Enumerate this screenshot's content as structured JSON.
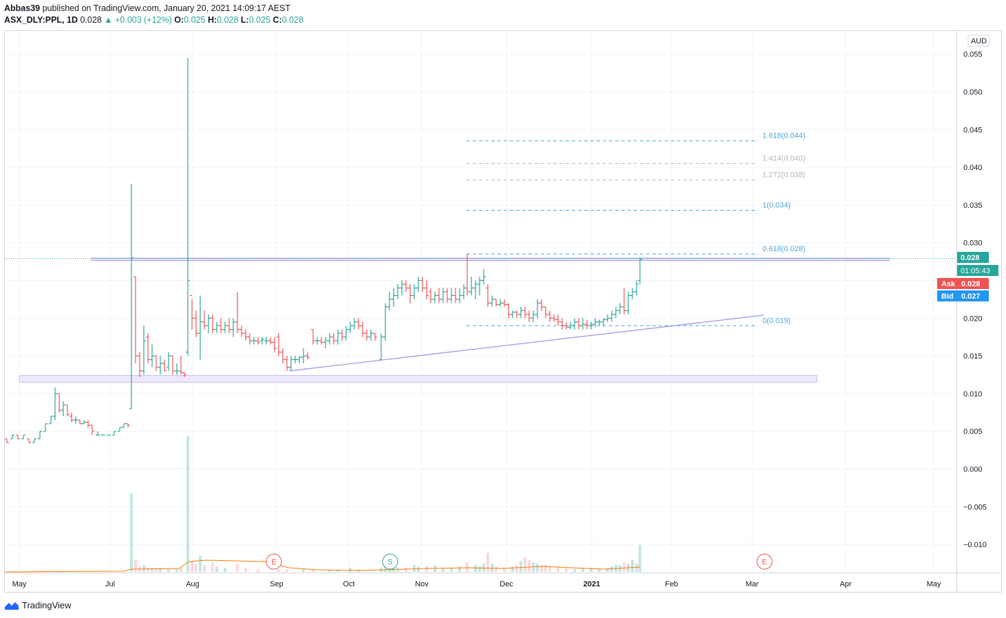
{
  "header": {
    "author": "Abbas39",
    "published_text": "published on TradingView.com, January 20, 2021 14:09:17 AEST",
    "symbol": "ASX_DLY:PPL, 1D",
    "last": "0.028",
    "change": "+0.003 (+12%)",
    "o_label": "O:",
    "o_value": "0.025",
    "h_label": "H:",
    "h_value": "0.028",
    "l_label": "L:",
    "l_value": "0.025",
    "c_label": "C:",
    "c_value": "0.028"
  },
  "footer": {
    "brand": "TradingView"
  },
  "colors": {
    "up": "#26a69a",
    "down": "#ef5350",
    "fib": "#4aa8d8",
    "fib_grey": "#b2b5be",
    "trend": "#9c8fe0",
    "zone": "#ede8fb",
    "ask": "#ef5350",
    "bid": "#2196f3",
    "volume_ma": "#f57c00"
  },
  "chart_data": {
    "type": "ohlc",
    "currency": "AUD",
    "y_ticks": [
      "0.055",
      "0.050",
      "0.045",
      "0.040",
      "0.035",
      "0.030",
      "0.025",
      "0.020",
      "0.015",
      "0.010",
      "0.005",
      "0.000",
      "−0.005",
      "−0.010"
    ],
    "x_ticks": [
      "May",
      "Jul",
      "Aug",
      "Sep",
      "Oct",
      "Nov",
      "Dec",
      "2021",
      "Feb",
      "Mar",
      "Apr",
      "May"
    ],
    "price_labels": {
      "last": "0.028",
      "countdown": "01:05:43",
      "ask_label": "Ask",
      "ask": "0.028",
      "bid_label": "Bid",
      "bid": "0.027"
    },
    "fib_levels": [
      {
        "label": "1.618(0.044)",
        "value": 0.0435,
        "muted": false
      },
      {
        "label": "1.414(0.040)",
        "value": 0.0405,
        "muted": true
      },
      {
        "label": "1.272(0.038)",
        "value": 0.0383,
        "muted": true
      },
      {
        "label": "1(0.034)",
        "value": 0.0343,
        "muted": false
      },
      {
        "label": "0.618(0.028)",
        "value": 0.0285,
        "muted": false
      },
      {
        "label": "0(0.019)",
        "value": 0.019,
        "muted": false
      }
    ],
    "events": [
      {
        "letter": "E",
        "date": "Sep",
        "color": "#ef5350"
      },
      {
        "letter": "S",
        "date": "Oct",
        "color": "#26a69a"
      },
      {
        "letter": "E",
        "date": "Mar",
        "color": "#ef5350"
      }
    ],
    "trendline": {
      "from": [
        420,
        0.013
      ],
      "to": [
        1110,
        0.0204
      ]
    },
    "support_zone": {
      "from_x": 28,
      "to_x": 1187,
      "low": 0.0115,
      "high": 0.0124
    },
    "resistance_line": {
      "from_x": 132,
      "to_x": 1293,
      "value": 0.0278
    },
    "bars": [
      [
        10,
        0.004,
        0.004,
        0.0035,
        0.0035
      ],
      [
        18,
        0.004,
        0.0045,
        0.004,
        0.0045
      ],
      [
        26,
        0.0045,
        0.0045,
        0.004,
        0.004
      ],
      [
        34,
        0.004,
        0.0045,
        0.004,
        0.0045
      ],
      [
        42,
        0.004,
        0.004,
        0.0035,
        0.0035
      ],
      [
        50,
        0.0035,
        0.004,
        0.0035,
        0.004
      ],
      [
        58,
        0.004,
        0.005,
        0.004,
        0.005
      ],
      [
        66,
        0.005,
        0.006,
        0.005,
        0.006
      ],
      [
        74,
        0.006,
        0.007,
        0.006,
        0.007
      ],
      [
        80,
        0.007,
        0.0108,
        0.0065,
        0.01
      ],
      [
        86,
        0.01,
        0.01,
        0.0075,
        0.0078
      ],
      [
        92,
        0.0078,
        0.009,
        0.007,
        0.0085
      ],
      [
        98,
        0.0085,
        0.0085,
        0.007,
        0.0072
      ],
      [
        104,
        0.007,
        0.0075,
        0.0062,
        0.0065
      ],
      [
        110,
        0.0065,
        0.007,
        0.006,
        0.0065
      ],
      [
        116,
        0.0065,
        0.0065,
        0.006,
        0.006
      ],
      [
        122,
        0.006,
        0.0065,
        0.006,
        0.0062
      ],
      [
        128,
        0.0062,
        0.0065,
        0.0055,
        0.0058
      ],
      [
        134,
        0.0058,
        0.0058,
        0.0045,
        0.005
      ],
      [
        142,
        0.0045,
        0.005,
        0.0045,
        0.0045
      ],
      [
        150,
        0.0045,
        0.0045,
        0.0045,
        0.0045
      ],
      [
        158,
        0.0045,
        0.0045,
        0.0045,
        0.0045
      ],
      [
        166,
        0.0045,
        0.005,
        0.0045,
        0.005
      ],
      [
        174,
        0.005,
        0.0055,
        0.005,
        0.0055
      ],
      [
        180,
        0.0055,
        0.006,
        0.0055,
        0.006
      ],
      [
        186,
        0.006,
        0.006,
        0.0055,
        0.0058
      ],
      [
        191,
        0.008,
        0.0378,
        0.008,
        0.028
      ],
      [
        197,
        0.0255,
        0.0255,
        0.014,
        0.015
      ],
      [
        203,
        0.015,
        0.0155,
        0.0122,
        0.013
      ],
      [
        209,
        0.013,
        0.019,
        0.0125,
        0.017
      ],
      [
        215,
        0.0175,
        0.018,
        0.014,
        0.0145
      ],
      [
        221,
        0.0145,
        0.0165,
        0.0135,
        0.015
      ],
      [
        227,
        0.015,
        0.015,
        0.013,
        0.0135
      ],
      [
        233,
        0.0135,
        0.015,
        0.0125,
        0.014
      ],
      [
        239,
        0.014,
        0.0145,
        0.013,
        0.013
      ],
      [
        245,
        0.0135,
        0.0155,
        0.013,
        0.015
      ],
      [
        251,
        0.015,
        0.015,
        0.0125,
        0.013
      ],
      [
        257,
        0.013,
        0.014,
        0.0125,
        0.013
      ],
      [
        263,
        0.013,
        0.015,
        0.0125,
        0.0128
      ],
      [
        268,
        0.0128,
        0.0128,
        0.0122,
        0.0125
      ],
      [
        273,
        0.0155,
        0.0545,
        0.015,
        0.025
      ],
      [
        279,
        0.023,
        0.0225,
        0.0185,
        0.02
      ],
      [
        285,
        0.02,
        0.021,
        0.0175,
        0.018
      ],
      [
        291,
        0.018,
        0.023,
        0.0145,
        0.0195
      ],
      [
        297,
        0.0195,
        0.021,
        0.0185,
        0.019
      ],
      [
        303,
        0.019,
        0.0205,
        0.018,
        0.02
      ],
      [
        309,
        0.02,
        0.0205,
        0.018,
        0.0185
      ],
      [
        315,
        0.0185,
        0.0195,
        0.018,
        0.019
      ],
      [
        321,
        0.019,
        0.02,
        0.018,
        0.0185
      ],
      [
        327,
        0.0185,
        0.0195,
        0.018,
        0.019
      ],
      [
        333,
        0.019,
        0.02,
        0.018,
        0.0185
      ],
      [
        339,
        0.0185,
        0.02,
        0.0175,
        0.0195
      ],
      [
        345,
        0.0195,
        0.0235,
        0.018,
        0.0185
      ],
      [
        351,
        0.0185,
        0.019,
        0.0175,
        0.018
      ],
      [
        357,
        0.018,
        0.0185,
        0.017,
        0.0175
      ],
      [
        363,
        0.0175,
        0.018,
        0.0165,
        0.017
      ],
      [
        369,
        0.017,
        0.0175,
        0.0165,
        0.017
      ],
      [
        375,
        0.017,
        0.0175,
        0.0165,
        0.0168
      ],
      [
        381,
        0.017,
        0.0175,
        0.0165,
        0.0172
      ],
      [
        387,
        0.017,
        0.0175,
        0.0165,
        0.017
      ],
      [
        393,
        0.017,
        0.0175,
        0.0165,
        0.0168
      ],
      [
        399,
        0.0168,
        0.0175,
        0.0155,
        0.016
      ],
      [
        405,
        0.0175,
        0.018,
        0.015,
        0.0155
      ],
      [
        411,
        0.0155,
        0.016,
        0.014,
        0.0145
      ],
      [
        417,
        0.0145,
        0.015,
        0.013,
        0.0135
      ],
      [
        423,
        0.0135,
        0.015,
        0.013,
        0.0145
      ],
      [
        429,
        0.0145,
        0.015,
        0.014,
        0.0145
      ],
      [
        435,
        0.0145,
        0.015,
        0.014,
        0.0148
      ],
      [
        441,
        0.0148,
        0.016,
        0.014,
        0.015
      ],
      [
        447,
        0.015,
        0.0155,
        0.0145,
        0.0148
      ],
      [
        455,
        0.0185,
        0.0185,
        0.0165,
        0.017
      ],
      [
        461,
        0.017,
        0.0175,
        0.0165,
        0.017
      ],
      [
        467,
        0.017,
        0.0175,
        0.0165,
        0.0168
      ],
      [
        473,
        0.0168,
        0.0175,
        0.016,
        0.017
      ],
      [
        479,
        0.017,
        0.018,
        0.0165,
        0.0175
      ],
      [
        485,
        0.0175,
        0.018,
        0.0165,
        0.017
      ],
      [
        491,
        0.017,
        0.0185,
        0.0165,
        0.018
      ],
      [
        497,
        0.018,
        0.0185,
        0.017,
        0.0175
      ],
      [
        503,
        0.0175,
        0.019,
        0.017,
        0.0185
      ],
      [
        509,
        0.0185,
        0.0195,
        0.018,
        0.019
      ],
      [
        515,
        0.019,
        0.02,
        0.0185,
        0.0195
      ],
      [
        521,
        0.0195,
        0.02,
        0.0185,
        0.019
      ],
      [
        527,
        0.019,
        0.0195,
        0.0175,
        0.018
      ],
      [
        533,
        0.018,
        0.0185,
        0.017,
        0.0175
      ],
      [
        539,
        0.0175,
        0.0185,
        0.017,
        0.018
      ],
      [
        545,
        0.018,
        0.018,
        0.017,
        0.0175
      ],
      [
        554,
        0.0145,
        0.018,
        0.0145,
        0.0175
      ],
      [
        560,
        0.0175,
        0.022,
        0.017,
        0.0215
      ],
      [
        566,
        0.0215,
        0.0235,
        0.021,
        0.0225
      ],
      [
        572,
        0.0225,
        0.024,
        0.0215,
        0.023
      ],
      [
        578,
        0.023,
        0.0245,
        0.0225,
        0.024
      ],
      [
        584,
        0.024,
        0.025,
        0.023,
        0.0245
      ],
      [
        590,
        0.0245,
        0.025,
        0.0235,
        0.024
      ],
      [
        596,
        0.024,
        0.0245,
        0.022,
        0.023
      ],
      [
        602,
        0.023,
        0.0245,
        0.0225,
        0.024
      ],
      [
        608,
        0.024,
        0.0255,
        0.0235,
        0.025
      ],
      [
        614,
        0.025,
        0.0255,
        0.0235,
        0.024
      ],
      [
        620,
        0.024,
        0.025,
        0.0225,
        0.023
      ],
      [
        626,
        0.0235,
        0.024,
        0.022,
        0.0225
      ],
      [
        632,
        0.0225,
        0.0235,
        0.022,
        0.023
      ],
      [
        638,
        0.023,
        0.024,
        0.022,
        0.0225
      ],
      [
        644,
        0.0225,
        0.024,
        0.022,
        0.0235
      ],
      [
        650,
        0.0235,
        0.024,
        0.022,
        0.0225
      ],
      [
        656,
        0.0225,
        0.024,
        0.022,
        0.023
      ],
      [
        662,
        0.023,
        0.024,
        0.022,
        0.0225
      ],
      [
        668,
        0.0225,
        0.024,
        0.022,
        0.023
      ],
      [
        674,
        0.023,
        0.0245,
        0.0225,
        0.024
      ],
      [
        679,
        0.024,
        0.0285,
        0.023,
        0.0235
      ],
      [
        685,
        0.0235,
        0.0255,
        0.023,
        0.024
      ],
      [
        691,
        0.024,
        0.025,
        0.0225,
        0.0245
      ],
      [
        697,
        0.0245,
        0.0255,
        0.023,
        0.025
      ],
      [
        703,
        0.025,
        0.0265,
        0.0245,
        0.0255
      ],
      [
        709,
        0.024,
        0.0245,
        0.0215,
        0.022
      ],
      [
        715,
        0.022,
        0.023,
        0.0215,
        0.0225
      ],
      [
        721,
        0.0225,
        0.0225,
        0.0215,
        0.0218
      ],
      [
        727,
        0.0218,
        0.0225,
        0.0215,
        0.022
      ],
      [
        733,
        0.022,
        0.0225,
        0.0215,
        0.0218
      ],
      [
        739,
        0.0218,
        0.022,
        0.02,
        0.0205
      ],
      [
        745,
        0.0205,
        0.021,
        0.02,
        0.0208
      ],
      [
        751,
        0.0208,
        0.021,
        0.02,
        0.0205
      ],
      [
        757,
        0.0205,
        0.0215,
        0.02,
        0.021
      ],
      [
        763,
        0.021,
        0.0215,
        0.02,
        0.0205
      ],
      [
        769,
        0.0205,
        0.021,
        0.0195,
        0.02
      ],
      [
        775,
        0.02,
        0.021,
        0.0195,
        0.0205
      ],
      [
        781,
        0.0205,
        0.0225,
        0.02,
        0.022
      ],
      [
        787,
        0.022,
        0.0225,
        0.021,
        0.0215
      ],
      [
        793,
        0.0215,
        0.0215,
        0.02,
        0.0205
      ],
      [
        799,
        0.0205,
        0.021,
        0.0195,
        0.02
      ],
      [
        805,
        0.02,
        0.0205,
        0.0195,
        0.0198
      ],
      [
        811,
        0.0198,
        0.0205,
        0.019,
        0.0195
      ],
      [
        817,
        0.0195,
        0.02,
        0.0185,
        0.019
      ],
      [
        823,
        0.019,
        0.0195,
        0.0185,
        0.0188
      ],
      [
        829,
        0.0188,
        0.0195,
        0.0185,
        0.019
      ],
      [
        835,
        0.019,
        0.02,
        0.0185,
        0.0195
      ],
      [
        841,
        0.0195,
        0.02,
        0.0185,
        0.019
      ],
      [
        847,
        0.019,
        0.02,
        0.0185,
        0.0192
      ],
      [
        853,
        0.0192,
        0.0198,
        0.0185,
        0.019
      ],
      [
        859,
        0.019,
        0.0195,
        0.0185,
        0.0192
      ],
      [
        865,
        0.0192,
        0.02,
        0.0188,
        0.0195
      ],
      [
        871,
        0.0195,
        0.0198,
        0.019,
        0.0195
      ],
      [
        877,
        0.0195,
        0.02,
        0.019,
        0.0198
      ],
      [
        883,
        0.0198,
        0.0205,
        0.0195,
        0.02
      ],
      [
        889,
        0.02,
        0.021,
        0.0195,
        0.0205
      ],
      [
        895,
        0.0205,
        0.0215,
        0.02,
        0.021
      ],
      [
        901,
        0.021,
        0.022,
        0.0205,
        0.0215
      ],
      [
        907,
        0.0215,
        0.024,
        0.0205,
        0.021
      ],
      [
        913,
        0.021,
        0.0235,
        0.0205,
        0.023
      ],
      [
        919,
        0.023,
        0.024,
        0.0225,
        0.0235
      ],
      [
        925,
        0.0235,
        0.025,
        0.023,
        0.0245
      ],
      [
        930,
        0.025,
        0.028,
        0.0245,
        0.0278
      ]
    ],
    "volume": [
      [
        191,
        0.58
      ],
      [
        197,
        0.09
      ],
      [
        203,
        0.04
      ],
      [
        209,
        0.05
      ],
      [
        215,
        0.03
      ],
      [
        221,
        0.03
      ],
      [
        227,
        0.03
      ],
      [
        233,
        0.03
      ],
      [
        245,
        0.02
      ],
      [
        257,
        0.02
      ],
      [
        263,
        0.03
      ],
      [
        273,
        1.0
      ],
      [
        279,
        0.08
      ],
      [
        285,
        0.06
      ],
      [
        291,
        0.12
      ],
      [
        297,
        0.05
      ],
      [
        309,
        0.07
      ],
      [
        315,
        0.04
      ],
      [
        327,
        0.03
      ],
      [
        345,
        0.06
      ],
      [
        357,
        0.03
      ],
      [
        375,
        0.02
      ],
      [
        405,
        0.02
      ],
      [
        417,
        0.02
      ],
      [
        441,
        0.02
      ],
      [
        455,
        0.02
      ],
      [
        479,
        0.02
      ],
      [
        491,
        0.02
      ],
      [
        509,
        0.03
      ],
      [
        521,
        0.02
      ],
      [
        554,
        0.03
      ],
      [
        560,
        0.06
      ],
      [
        566,
        0.04
      ],
      [
        572,
        0.05
      ],
      [
        578,
        0.03
      ],
      [
        590,
        0.03
      ],
      [
        602,
        0.05
      ],
      [
        608,
        0.04
      ],
      [
        620,
        0.04
      ],
      [
        632,
        0.05
      ],
      [
        644,
        0.03
      ],
      [
        656,
        0.03
      ],
      [
        668,
        0.04
      ],
      [
        679,
        0.07
      ],
      [
        691,
        0.05
      ],
      [
        697,
        0.04
      ],
      [
        703,
        0.06
      ],
      [
        709,
        0.14
      ],
      [
        715,
        0.06
      ],
      [
        721,
        0.04
      ],
      [
        733,
        0.03
      ],
      [
        745,
        0.04
      ],
      [
        751,
        0.05
      ],
      [
        757,
        0.08
      ],
      [
        763,
        0.11
      ],
      [
        769,
        0.09
      ],
      [
        775,
        0.07
      ],
      [
        781,
        0.06
      ],
      [
        787,
        0.05
      ],
      [
        793,
        0.05
      ],
      [
        799,
        0.04
      ],
      [
        811,
        0.04
      ],
      [
        823,
        0.03
      ],
      [
        835,
        0.02
      ],
      [
        847,
        0.03
      ],
      [
        859,
        0.03
      ],
      [
        871,
        0.02
      ],
      [
        883,
        0.03
      ],
      [
        889,
        0.04
      ],
      [
        895,
        0.05
      ],
      [
        901,
        0.05
      ],
      [
        907,
        0.07
      ],
      [
        913,
        0.06
      ],
      [
        919,
        0.09
      ],
      [
        925,
        0.06
      ],
      [
        930,
        0.2
      ]
    ]
  }
}
